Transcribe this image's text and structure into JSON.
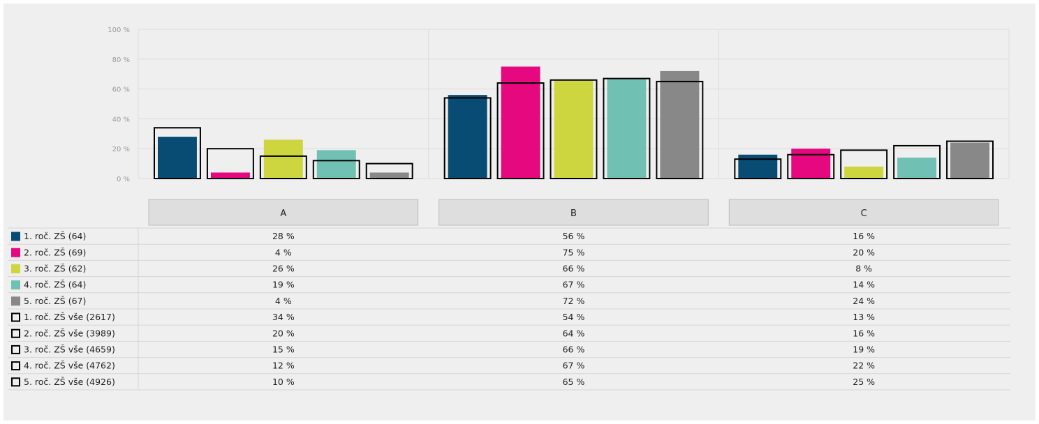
{
  "chart_data": {
    "type": "bar",
    "categories": [
      "A",
      "B",
      "C"
    ],
    "ylim": [
      0,
      100
    ],
    "y_ticks": [
      {
        "value": 0,
        "label": "0 %"
      },
      {
        "value": 20,
        "label": "20 %"
      },
      {
        "value": 40,
        "label": "40 %"
      },
      {
        "value": 60,
        "label": "60 %"
      },
      {
        "value": 80,
        "label": "80 %"
      },
      {
        "value": 100,
        "label": "100 %"
      }
    ],
    "grid": true,
    "series": [
      {
        "name": "1. roč. ZŠ (64)",
        "style": "filled",
        "color": "#084c74",
        "values": [
          28,
          56,
          16
        ],
        "labels": [
          "28 %",
          "56 %",
          "16 %"
        ]
      },
      {
        "name": "2. roč. ZŠ (69)",
        "style": "filled",
        "color": "#e5087e",
        "values": [
          4,
          75,
          20
        ],
        "labels": [
          "4 %",
          "75 %",
          "20 %"
        ]
      },
      {
        "name": "3. roč. ZŠ (62)",
        "style": "filled",
        "color": "#cdd63e",
        "values": [
          26,
          66,
          8
        ],
        "labels": [
          "26 %",
          "66 %",
          "8 %"
        ]
      },
      {
        "name": "4. roč. ZŠ (64)",
        "style": "filled",
        "color": "#70c0b3",
        "values": [
          19,
          67,
          14
        ],
        "labels": [
          "19 %",
          "67 %",
          "14 %"
        ]
      },
      {
        "name": "5. roč. ZŠ (67)",
        "style": "filled",
        "color": "#888888",
        "values": [
          4,
          72,
          24
        ],
        "labels": [
          "4 %",
          "72 %",
          "24 %"
        ]
      },
      {
        "name": "1. roč. ZŠ vše (2617)",
        "style": "outline",
        "color": "#000000",
        "values": [
          34,
          54,
          13
        ],
        "labels": [
          "34 %",
          "54 %",
          "13 %"
        ]
      },
      {
        "name": "2. roč. ZŠ vše (3989)",
        "style": "outline",
        "color": "#000000",
        "values": [
          20,
          64,
          16
        ],
        "labels": [
          "20 %",
          "64 %",
          "16 %"
        ]
      },
      {
        "name": "3. roč. ZŠ vše (4659)",
        "style": "outline",
        "color": "#000000",
        "values": [
          15,
          66,
          19
        ],
        "labels": [
          "15 %",
          "66 %",
          "19 %"
        ]
      },
      {
        "name": "4. roč. ZŠ vše (4762)",
        "style": "outline",
        "color": "#000000",
        "values": [
          12,
          67,
          22
        ],
        "labels": [
          "12 %",
          "67 %",
          "22 %"
        ]
      },
      {
        "name": "5. roč. ZŠ vše (4926)",
        "style": "outline",
        "color": "#000000",
        "values": [
          10,
          65,
          25
        ],
        "labels": [
          "10 %",
          "65 %",
          "25 %"
        ]
      }
    ]
  }
}
